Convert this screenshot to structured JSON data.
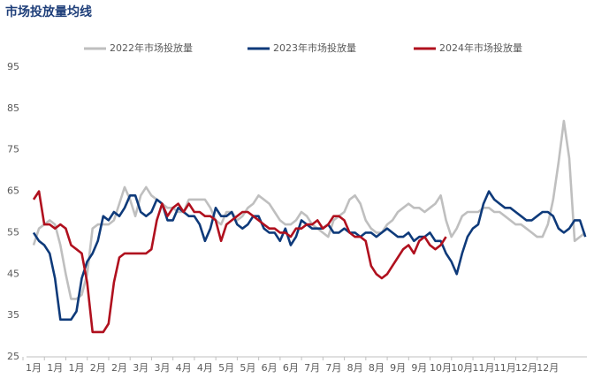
{
  "chart_data": {
    "type": "line",
    "title": "市场投放量均线",
    "categories": [
      "1月",
      null,
      null,
      null,
      "1月",
      null,
      null,
      null,
      "1月",
      null,
      null,
      null,
      "2月",
      null,
      null,
      null,
      "2月",
      null,
      null,
      null,
      "3月",
      null,
      null,
      null,
      "3月",
      null,
      null,
      null,
      "4月",
      null,
      null,
      null,
      "4月",
      null,
      null,
      null,
      "5月",
      null,
      null,
      null,
      "5月",
      null,
      null,
      null,
      "6月",
      null,
      null,
      null,
      "6月",
      null,
      null,
      null,
      "7月",
      null,
      null,
      null,
      "7月",
      null,
      null,
      null,
      "8月",
      null,
      null,
      null,
      "8月",
      null,
      null,
      null,
      "9月",
      null,
      null,
      null,
      "9月",
      null,
      null,
      null,
      "10月",
      null,
      null,
      null,
      "10月",
      null,
      null,
      null,
      "11月",
      null,
      null,
      null,
      "11月",
      null,
      null,
      null,
      "12月",
      null,
      null,
      null,
      "12月",
      null,
      null,
      null,
      null,
      null,
      null,
      null
    ],
    "series": [
      {
        "name": "2022年市场投放量",
        "color": "#bfbfbf",
        "values": [
          52,
          56,
          57,
          58,
          57,
          52,
          45,
          39,
          39,
          40,
          45,
          56,
          57,
          57,
          57,
          58,
          62,
          66,
          63,
          59,
          64,
          66,
          64,
          63,
          62,
          61,
          61,
          60,
          60,
          63,
          63,
          63,
          63,
          61,
          58,
          57,
          60,
          60,
          58,
          59,
          61,
          62,
          64,
          63,
          62,
          60,
          58,
          57,
          57,
          58,
          60,
          59,
          57,
          56,
          55,
          54,
          58,
          59,
          60,
          63,
          64,
          62,
          58,
          56,
          55,
          55,
          57,
          58,
          60,
          61,
          62,
          61,
          61,
          60,
          61,
          62,
          64,
          58,
          54,
          56,
          59,
          60,
          60,
          60,
          61,
          61,
          60,
          60,
          59,
          58,
          57,
          57,
          56,
          55,
          54,
          54,
          57,
          63,
          72,
          82,
          73,
          53,
          54,
          55
        ]
      },
      {
        "name": "2023年市场投放量",
        "color": "#0e3a7a",
        "values": [
          55,
          53,
          52,
          50,
          44,
          34,
          34,
          34,
          36,
          44,
          48,
          50,
          53,
          59,
          58,
          60,
          59,
          61,
          64,
          64,
          60,
          59,
          60,
          63,
          62,
          58,
          58,
          61,
          60,
          59,
          59,
          57,
          53,
          56,
          61,
          59,
          59,
          60,
          57,
          56,
          57,
          59,
          59,
          56,
          55,
          55,
          53,
          56,
          52,
          54,
          58,
          57,
          56,
          56,
          56,
          57,
          55,
          55,
          56,
          55,
          55,
          54,
          55,
          55,
          54,
          55,
          56,
          55,
          54,
          54,
          55,
          53,
          54,
          54,
          55,
          53,
          53,
          50,
          48,
          45,
          50,
          54,
          56,
          57,
          62,
          65,
          63,
          62,
          61,
          61,
          60,
          59,
          58,
          58,
          59,
          60,
          60,
          59,
          56,
          55,
          56,
          58,
          58,
          54
        ]
      },
      {
        "name": "2024年市场投放量",
        "color": "#b0101e",
        "values": [
          63,
          65,
          57,
          57,
          56,
          57,
          56,
          52,
          51,
          50,
          43,
          31,
          31,
          31,
          33,
          43,
          49,
          50,
          50,
          50,
          50,
          50,
          51,
          58,
          62,
          59,
          61,
          62,
          60,
          62,
          60,
          60,
          59,
          59,
          58,
          53,
          57,
          58,
          59,
          60,
          60,
          59,
          58,
          57,
          56,
          56,
          55,
          55,
          54,
          56,
          56,
          57,
          57,
          58,
          56,
          57,
          59,
          59,
          58,
          55,
          54,
          54,
          53,
          47,
          45,
          44,
          45,
          47,
          49,
          51,
          52,
          50,
          53,
          54,
          52,
          51,
          52,
          54,
          null,
          null,
          null,
          null,
          null,
          null,
          null,
          null,
          null,
          null,
          null,
          null,
          null,
          null,
          null,
          null,
          null,
          null,
          null,
          null,
          null,
          null,
          null,
          null,
          null,
          null
        ]
      }
    ],
    "ylim": [
      25,
      95
    ],
    "yticks": [
      25,
      35,
      45,
      55,
      65,
      75,
      85,
      95
    ],
    "grid": false,
    "legend": "top"
  }
}
